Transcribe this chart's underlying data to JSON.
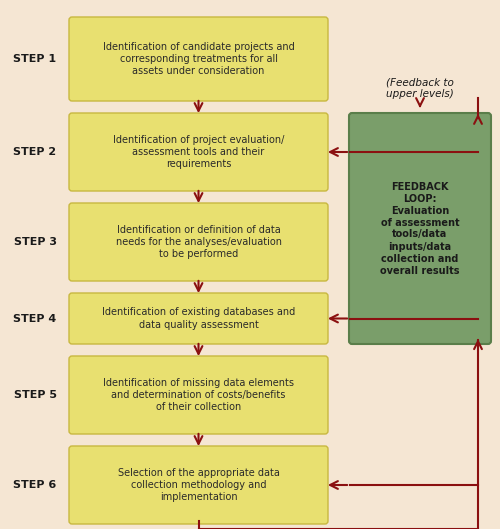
{
  "background_color": "#f5e6d3",
  "step_labels": [
    "STEP 1",
    "STEP 2",
    "STEP 3",
    "STEP 4",
    "STEP 5",
    "STEP 6"
  ],
  "step_texts": [
    "Identification of candidate projects and\ncorresponding treatments for all\nassets under consideration",
    "Identification of project evaluation/\nassessment tools and their\nrequirements",
    "Identification or definition of data\nneeds for the analyses/evaluation\nto be performed",
    "Identification of existing databases and\ndata quality assessment",
    "Identification of missing data elements\nand determination of costs/benefits\nof their collection",
    "Selection of the appropriate data\ncollection methodology and\nimplementation"
  ],
  "box_color": "#e8e070",
  "box_edge_color": "#c8b840",
  "step_label_color": "#1a1a1a",
  "text_color": "#2a2a2a",
  "arrow_color": "#8b1010",
  "feedback_box_color": "#7a9e6a",
  "feedback_box_edge_color": "#5a7e4a",
  "feedback_text": "FEEDBACK\nLOOP:\nEvaluation\nof assessment\ntools/data\ninputs/data\ncollection and\noverall results",
  "feedback_label": "(Feedback to\nupper levels)",
  "feedback_text_color": "#1a1a1a",
  "feedback_label_color": "#1a1a1a",
  "fig_width": 5.0,
  "fig_height": 5.29
}
